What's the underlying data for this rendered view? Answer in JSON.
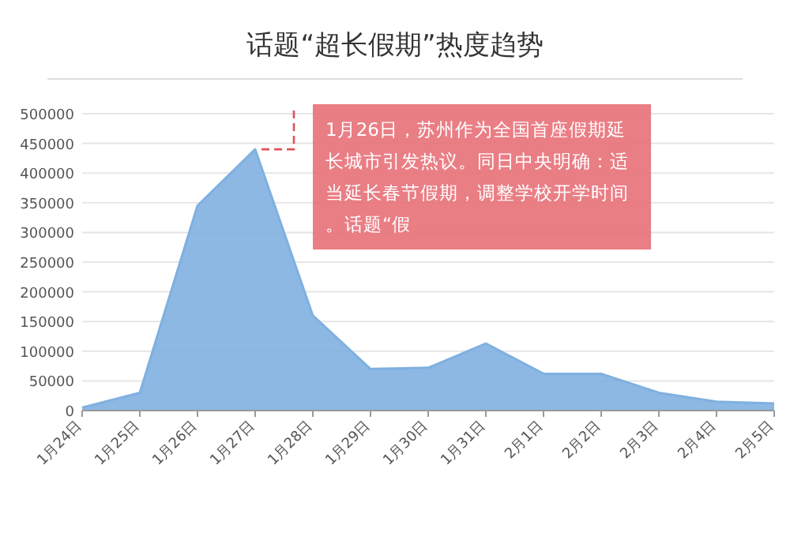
{
  "chart_data": {
    "type": "area",
    "title": "话题“超长假期”热度趋势",
    "categories": [
      "1月24日",
      "1月25日",
      "1月26日",
      "1月27日",
      "1月28日",
      "1月29日",
      "1月30日",
      "1月31日",
      "2月1日",
      "2月2日",
      "2月3日",
      "2月4日",
      "2月5日"
    ],
    "series": [
      {
        "color": "#7fb0e0",
        "values": [
          5000,
          30000,
          345000,
          440000,
          160000,
          70000,
          72000,
          113000,
          62000,
          62000,
          30000,
          15000,
          12000
        ]
      }
    ],
    "ylim": [
      0,
      500000
    ],
    "yticks": [
      0,
      50000,
      100000,
      150000,
      200000,
      250000,
      300000,
      350000,
      400000,
      450000,
      500000
    ],
    "grid": "y",
    "annotations": [
      "1月26日，苏州作为全国首座假期延长城市引发热议。同日中央明确：适当延长春节假期，调整学校开学时间。话题“假"
    ]
  }
}
